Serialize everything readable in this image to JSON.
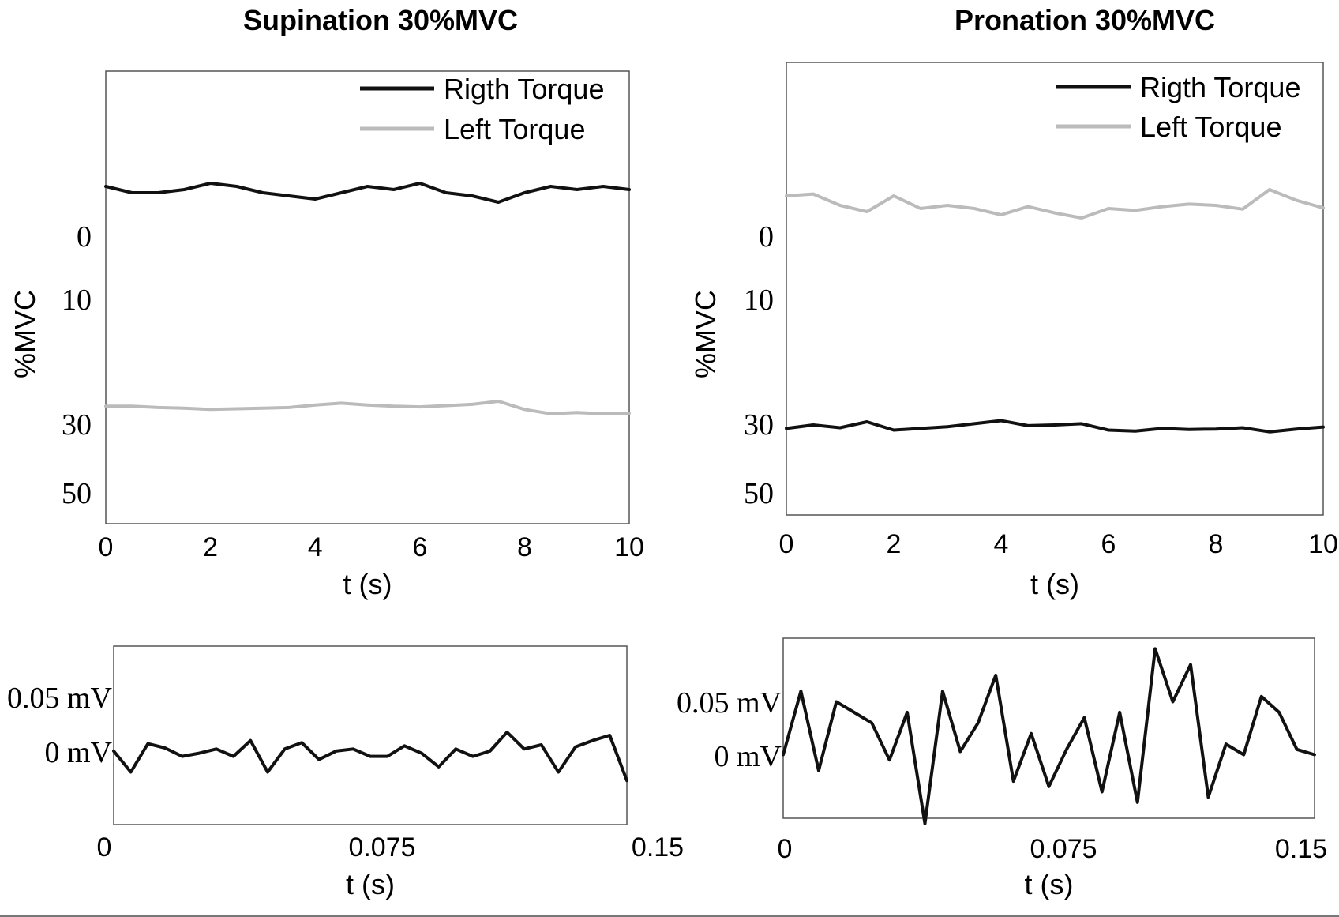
{
  "chart_data": [
    {
      "type": "line",
      "title": "Supination 30%MVC",
      "xlabel": "t (s)",
      "ylabel": "%MVC",
      "xlim": [
        0,
        10
      ],
      "xticks": [
        "0",
        "2",
        "4",
        "6",
        "8",
        "10"
      ],
      "yticks": [
        "0",
        "10",
        "30",
        "50"
      ],
      "y_inverted": true,
      "legend_position": "top-right",
      "series": [
        {
          "name": "Rigth Torque",
          "color": "#111111",
          "x": [
            0,
            0.5,
            1,
            1.5,
            2,
            2.5,
            3,
            3.5,
            4,
            4.5,
            5,
            5.5,
            6,
            6.5,
            7,
            7.5,
            8,
            8.5,
            9,
            9.5,
            10
          ],
          "values": [
            -8,
            -7,
            -7,
            -7.5,
            -8.5,
            -8,
            -7,
            -6.5,
            -6,
            -7,
            -8,
            -7.5,
            -8.5,
            -7,
            -6.5,
            -5.5,
            -7,
            -8,
            -7.5,
            -8,
            -7.5
          ]
        },
        {
          "name": "Left Torque",
          "color": "#bbbbbb",
          "x": [
            0,
            0.5,
            1,
            1.5,
            2,
            2.5,
            3,
            3.5,
            4,
            4.5,
            5,
            5.5,
            6,
            6.5,
            7,
            7.5,
            8,
            8.5,
            9,
            9.5,
            10
          ],
          "values": [
            27,
            27,
            27.2,
            27.3,
            27.5,
            27.4,
            27.3,
            27.2,
            26.8,
            26.5,
            26.8,
            27,
            27.1,
            26.9,
            26.7,
            26.2,
            27.5,
            28.2,
            28,
            28.2,
            28.1
          ]
        }
      ]
    },
    {
      "type": "line",
      "title": "Pronation 30%MVC",
      "xlabel": "t (s)",
      "ylabel": "%MVC",
      "xlim": [
        0,
        10
      ],
      "xticks": [
        "0",
        "2",
        "4",
        "6",
        "8",
        "10"
      ],
      "yticks": [
        "0",
        "10",
        "30",
        "50"
      ],
      "y_inverted": true,
      "legend_position": "top-right",
      "series": [
        {
          "name": "Rigth Torque",
          "color": "#111111",
          "x": [
            0,
            0.5,
            1,
            1.5,
            2,
            2.5,
            3,
            3.5,
            4,
            4.5,
            5,
            5.5,
            6,
            6.5,
            7,
            7.5,
            8,
            8.5,
            9,
            9.5,
            10
          ],
          "values": [
            31,
            30,
            30.8,
            29.5,
            31.5,
            31,
            30.5,
            29.8,
            29.3,
            30.2,
            30,
            29.8,
            31.5,
            31.8,
            31,
            31.3,
            31.2,
            30.8,
            32,
            31.2,
            30.6
          ]
        },
        {
          "name": "Left Torque",
          "color": "#bbbbbb",
          "x": [
            0,
            0.5,
            1,
            1.5,
            2,
            2.5,
            3,
            3.5,
            4,
            4.5,
            5,
            5.5,
            6,
            6.5,
            7,
            7.5,
            8,
            8.5,
            9,
            9.5,
            10
          ],
          "values": [
            -6.5,
            -6.8,
            -5,
            -4,
            -6.5,
            -4.5,
            -5,
            -4.5,
            -3.5,
            -4.8,
            -3.8,
            -3,
            -4.5,
            -4.2,
            -4.8,
            -5.2,
            -5,
            -4.4,
            -7.5,
            -5.8,
            -4.6
          ]
        }
      ]
    },
    {
      "type": "line",
      "xlabel": "t (s)",
      "xlim": [
        0,
        0.15
      ],
      "xticks": [
        "0",
        "0.075",
        "0.15"
      ],
      "yticks": [
        "0.05 mV",
        "0 mV"
      ],
      "ylim": [
        -0.06,
        0.11
      ],
      "series": [
        {
          "color": "#111111",
          "x": [
            0,
            0.005,
            0.01,
            0.015,
            0.02,
            0.025,
            0.03,
            0.035,
            0.04,
            0.045,
            0.05,
            0.055,
            0.06,
            0.065,
            0.07,
            0.075,
            0.08,
            0.085,
            0.09,
            0.095,
            0.1,
            0.105,
            0.11,
            0.115,
            0.12,
            0.125,
            0.13,
            0.135,
            0.14,
            0.145,
            0.15
          ],
          "values": [
            0.01,
            -0.01,
            0.017,
            0.013,
            0.005,
            0.008,
            0.012,
            0.005,
            0.02,
            -0.01,
            0.012,
            0.018,
            0.002,
            0.01,
            0.012,
            0.005,
            0.005,
            0.015,
            0.008,
            -0.005,
            0.012,
            0.005,
            0.01,
            0.028,
            0.012,
            0.016,
            -0.01,
            0.014,
            0.02,
            0.025,
            -0.018
          ]
        }
      ]
    },
    {
      "type": "line",
      "xlabel": "t (s)",
      "xlim": [
        0,
        0.15
      ],
      "xticks": [
        "0",
        "0.075",
        "0.15"
      ],
      "yticks": [
        "0.05 mV",
        "0 mV"
      ],
      "ylim": [
        -0.06,
        0.11
      ],
      "series": [
        {
          "color": "#111111",
          "x": [
            0,
            0.005,
            0.01,
            0.015,
            0.02,
            0.025,
            0.03,
            0.035,
            0.04,
            0.045,
            0.05,
            0.055,
            0.06,
            0.065,
            0.07,
            0.075,
            0.08,
            0.085,
            0.09,
            0.095,
            0.1,
            0.105,
            0.11,
            0.115,
            0.12,
            0.125,
            0.13,
            0.135,
            0.14,
            0.145,
            0.15
          ],
          "values": [
            0.0,
            0.06,
            -0.015,
            0.05,
            0.04,
            0.03,
            -0.005,
            0.04,
            -0.065,
            0.06,
            0.003,
            0.03,
            0.075,
            -0.025,
            0.02,
            -0.03,
            0.005,
            0.035,
            -0.035,
            0.04,
            -0.045,
            0.1,
            0.05,
            0.085,
            -0.04,
            0.01,
            0.0,
            0.055,
            0.04,
            0.005,
            0.0
          ]
        }
      ]
    }
  ]
}
